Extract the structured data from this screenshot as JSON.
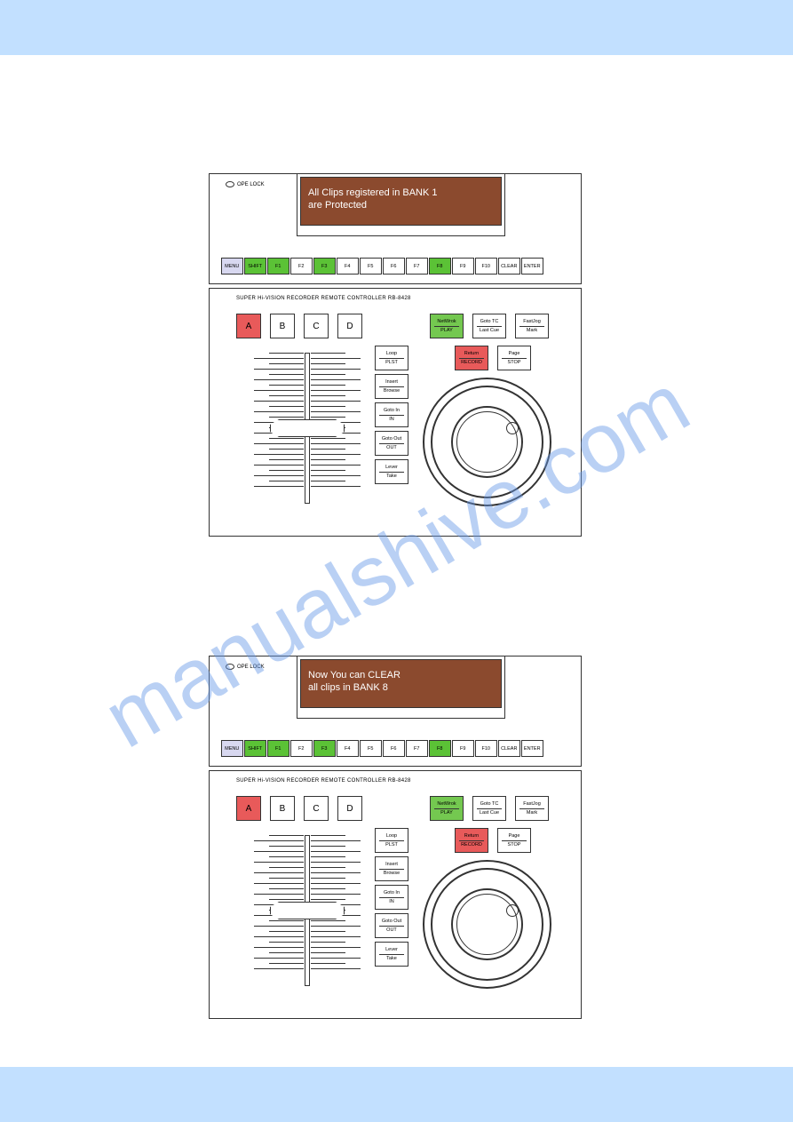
{
  "banners": {
    "top_color": "#c2e0ff",
    "bottom_color": "#c2e0ff"
  },
  "watermark": "manualshive.com",
  "panel1": {
    "ope_lock": "OPE LOCK",
    "screen_line1": "All Clips registered in BANK 1",
    "screen_line2": "are Protected",
    "screen_bg": "#8b4a2e",
    "model": "SUPER Hi-VISION RECORDER REMOTE CONTROLLER RB-8428",
    "fn": [
      "MENU",
      "SHIFT",
      "F1",
      "F2",
      "F3",
      "F4",
      "F5",
      "F6",
      "F7",
      "F8",
      "F9",
      "F10",
      "CLEAR",
      "ENTER"
    ],
    "fn_colors": [
      "lav",
      "green",
      "green",
      "",
      "green",
      "",
      "",
      "",
      "",
      "green",
      "",
      "",
      "",
      ""
    ],
    "abcd": [
      "A",
      "B",
      "C",
      "D"
    ],
    "a_color": "#e85a5a",
    "top_right": [
      {
        "t1": "NetWrok",
        "t2": "PLAY",
        "cls": "green"
      },
      {
        "t1": "Goto TC",
        "t2": "Last Cue",
        "cls": ""
      },
      {
        "t1": "FastJog",
        "t2": "Mark",
        "cls": ""
      }
    ],
    "second_right": [
      {
        "t1": "Return",
        "t2": "RECORD",
        "cls": "red-b"
      },
      {
        "t1": "Page",
        "t2": "STOP",
        "cls": ""
      }
    ],
    "vert": [
      {
        "t1": "Loop",
        "t2": "PLST"
      },
      {
        "t1": "Insert",
        "t2": "Browse"
      },
      {
        "t1": "Goto In",
        "t2": "IN"
      },
      {
        "t1": "Goto Out",
        "t2": "OUT"
      },
      {
        "t1": "Lever",
        "t2": "Take"
      }
    ]
  },
  "panel2": {
    "ope_lock": "OPE LOCK",
    "screen_line1": "Now You can CLEAR",
    "screen_line2": "all clips in BANK 8",
    "screen_bg": "#8b4a2e",
    "model": "SUPER Hi-VISION RECORDER REMOTE CONTROLLER RB-8428",
    "fn": [
      "MENU",
      "SHIFT",
      "F1",
      "F2",
      "F3",
      "F4",
      "F5",
      "F6",
      "F7",
      "F8",
      "F9",
      "F10",
      "CLEAR",
      "ENTER"
    ],
    "fn_colors": [
      "lav",
      "green",
      "green",
      "",
      "green",
      "",
      "",
      "",
      "",
      "green",
      "",
      "",
      "",
      ""
    ],
    "abcd": [
      "A",
      "B",
      "C",
      "D"
    ],
    "a_color": "#e85a5a",
    "top_right": [
      {
        "t1": "NetWrok",
        "t2": "PLAY",
        "cls": "green"
      },
      {
        "t1": "Goto TC",
        "t2": "Last Cue",
        "cls": ""
      },
      {
        "t1": "FastJog",
        "t2": "Mark",
        "cls": ""
      }
    ],
    "second_right": [
      {
        "t1": "Return",
        "t2": "RECORD",
        "cls": "red-b"
      },
      {
        "t1": "Page",
        "t2": "STOP",
        "cls": ""
      }
    ],
    "vert": [
      {
        "t1": "Loop",
        "t2": "PLST"
      },
      {
        "t1": "Insert",
        "t2": "Browse"
      },
      {
        "t1": "Goto In",
        "t2": "IN"
      },
      {
        "t1": "Goto Out",
        "t2": "OUT"
      },
      {
        "t1": "Lever",
        "t2": "Take"
      }
    ]
  }
}
